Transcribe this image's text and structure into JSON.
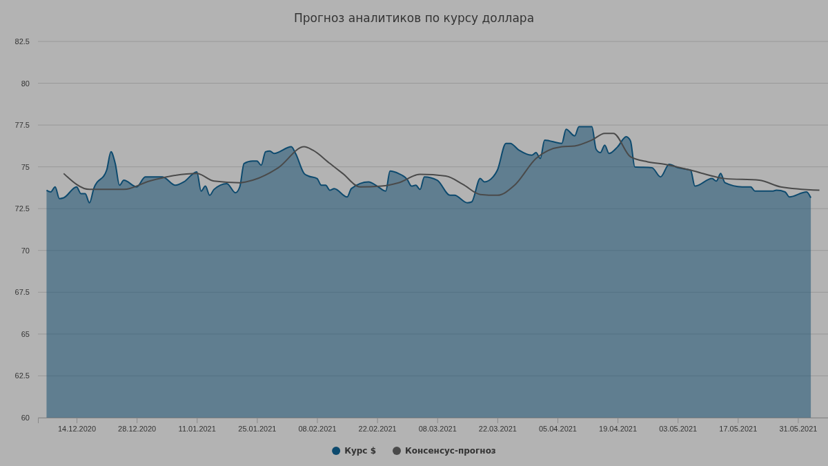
{
  "chart_data": {
    "type": "area",
    "title": "Прогноз аналитиков по курсу доллара",
    "xlim": [
      "2020-12-05",
      "2021-06-07"
    ],
    "xticks": [
      {
        "value": "2020-12-14",
        "label": "14.12.2020"
      },
      {
        "value": "2020-12-28",
        "label": "28.12.2020"
      },
      {
        "value": "2021-01-11",
        "label": "11.01.2021"
      },
      {
        "value": "2021-01-25",
        "label": "25.01.2021"
      },
      {
        "value": "2021-02-08",
        "label": "08.02.2021"
      },
      {
        "value": "2021-02-22",
        "label": "22.02.2021"
      },
      {
        "value": "2021-03-08",
        "label": "08.03.2021"
      },
      {
        "value": "2021-03-22",
        "label": "22.03.2021"
      },
      {
        "value": "2021-04-05",
        "label": "05.04.2021"
      },
      {
        "value": "2021-04-19",
        "label": "19.04.2021"
      },
      {
        "value": "2021-05-03",
        "label": "03.05.2021"
      },
      {
        "value": "2021-05-17",
        "label": "17.05.2021"
      },
      {
        "value": "2021-05-31",
        "label": "31.05.2021"
      }
    ],
    "ylim": [
      60,
      82.5
    ],
    "yticks": [
      60,
      62.5,
      65,
      67.5,
      70,
      72.5,
      75,
      77.5,
      80,
      82.5
    ],
    "grid": "y",
    "legend": "bottom",
    "series": [
      {
        "name": "Курс $",
        "color": "#0d4a6e",
        "x": [
          "2020-12-07",
          "2020-12-08",
          "2020-12-09",
          "2020-12-10",
          "2020-12-11",
          "2020-12-14",
          "2020-12-15",
          "2020-12-16",
          "2020-12-17",
          "2020-12-18",
          "2020-12-21",
          "2020-12-22",
          "2020-12-23",
          "2020-12-24",
          "2020-12-25",
          "2020-12-28",
          "2020-12-30",
          "2021-01-03",
          "2021-01-06",
          "2021-01-08",
          "2021-01-11",
          "2021-01-12",
          "2021-01-13",
          "2021-01-14",
          "2021-01-15",
          "2021-01-18",
          "2021-01-20",
          "2021-01-21",
          "2021-01-22",
          "2021-01-24",
          "2021-01-25",
          "2021-01-26",
          "2021-01-27",
          "2021-01-28",
          "2021-01-29",
          "2021-02-02",
          "2021-02-03",
          "2021-02-05",
          "2021-02-06",
          "2021-02-08",
          "2021-02-09",
          "2021-02-10",
          "2021-02-11",
          "2021-02-12",
          "2021-02-15",
          "2021-02-16",
          "2021-02-20",
          "2021-02-22",
          "2021-02-24",
          "2021-02-25",
          "2021-02-27",
          "2021-03-01",
          "2021-03-02",
          "2021-03-03",
          "2021-03-04",
          "2021-03-05",
          "2021-03-08",
          "2021-03-11",
          "2021-03-12",
          "2021-03-15",
          "2021-03-16",
          "2021-03-18",
          "2021-03-19",
          "2021-03-21",
          "2021-03-22",
          "2021-03-24",
          "2021-03-25",
          "2021-03-27",
          "2021-03-30",
          "2021-03-31",
          "2021-04-01",
          "2021-04-02",
          "2021-04-06",
          "2021-04-07",
          "2021-04-09",
          "2021-04-10",
          "2021-04-13",
          "2021-04-14",
          "2021-04-15",
          "2021-04-16",
          "2021-04-17",
          "2021-04-19",
          "2021-04-21",
          "2021-04-22",
          "2021-04-23",
          "2021-04-27",
          "2021-04-29",
          "2021-05-01",
          "2021-05-03",
          "2021-05-06",
          "2021-05-07",
          "2021-05-11",
          "2021-05-12",
          "2021-05-13",
          "2021-05-14",
          "2021-05-18",
          "2021-05-20",
          "2021-05-21",
          "2021-05-25",
          "2021-05-26",
          "2021-05-28",
          "2021-05-29",
          "2021-06-02",
          "2021-06-03"
        ],
        "values": [
          73.6,
          73.5,
          73.8,
          73.1,
          73.15,
          73.8,
          73.4,
          73.4,
          72.85,
          73.7,
          74.8,
          75.9,
          75.2,
          73.9,
          74.2,
          73.8,
          74.4,
          74.4,
          73.9,
          74.1,
          74.7,
          73.55,
          73.85,
          73.3,
          73.65,
          74.0,
          73.45,
          73.8,
          75.2,
          75.35,
          75.35,
          75.1,
          75.9,
          75.95,
          75.8,
          76.2,
          75.8,
          74.6,
          74.45,
          74.3,
          73.9,
          73.9,
          73.6,
          73.7,
          73.2,
          73.7,
          74.1,
          73.85,
          73.55,
          74.75,
          74.6,
          74.25,
          73.85,
          73.9,
          73.65,
          74.4,
          74.2,
          73.3,
          73.3,
          72.85,
          72.9,
          74.3,
          74.1,
          74.4,
          74.8,
          76.4,
          76.4,
          76.0,
          75.7,
          75.85,
          75.5,
          76.6,
          76.4,
          77.25,
          76.85,
          77.4,
          77.4,
          76.05,
          75.85,
          76.3,
          75.8,
          76.2,
          76.8,
          76.55,
          75.0,
          74.95,
          74.4,
          75.15,
          74.95,
          74.8,
          73.85,
          74.3,
          74.15,
          74.6,
          74.05,
          73.8,
          73.8,
          73.55,
          73.55,
          73.6,
          73.5,
          73.2,
          73.5,
          73.15
        ]
      },
      {
        "name": "Консенсус-прогноз",
        "type": "line",
        "color": "#4a4a4a",
        "x": [
          "2020-12-11",
          "2020-12-17",
          "2020-12-25",
          "2020-12-31",
          "2021-01-05",
          "2021-01-11",
          "2021-01-15",
          "2021-01-21",
          "2021-01-24",
          "2021-01-30",
          "2021-02-05",
          "2021-02-07",
          "2021-02-11",
          "2021-02-14",
          "2021-02-18",
          "2021-02-23",
          "2021-02-27",
          "2021-03-04",
          "2021-03-10",
          "2021-03-14",
          "2021-03-18",
          "2021-03-22",
          "2021-03-26",
          "2021-03-31",
          "2021-04-06",
          "2021-04-09",
          "2021-04-13",
          "2021-04-16",
          "2021-04-18",
          "2021-04-22",
          "2021-04-26",
          "2021-04-30",
          "2021-05-06",
          "2021-05-14",
          "2021-05-22",
          "2021-05-27",
          "2021-06-05"
        ],
        "values": [
          74.6,
          73.65,
          73.65,
          74.15,
          74.45,
          74.6,
          74.15,
          74.05,
          74.2,
          74.95,
          76.2,
          76.0,
          75.2,
          74.6,
          73.8,
          73.85,
          74.05,
          74.55,
          74.45,
          73.95,
          73.35,
          73.3,
          73.9,
          75.5,
          76.2,
          76.25,
          76.6,
          77.0,
          77.0,
          75.6,
          75.3,
          75.15,
          74.8,
          74.3,
          74.2,
          73.8,
          73.6
        ]
      }
    ]
  }
}
